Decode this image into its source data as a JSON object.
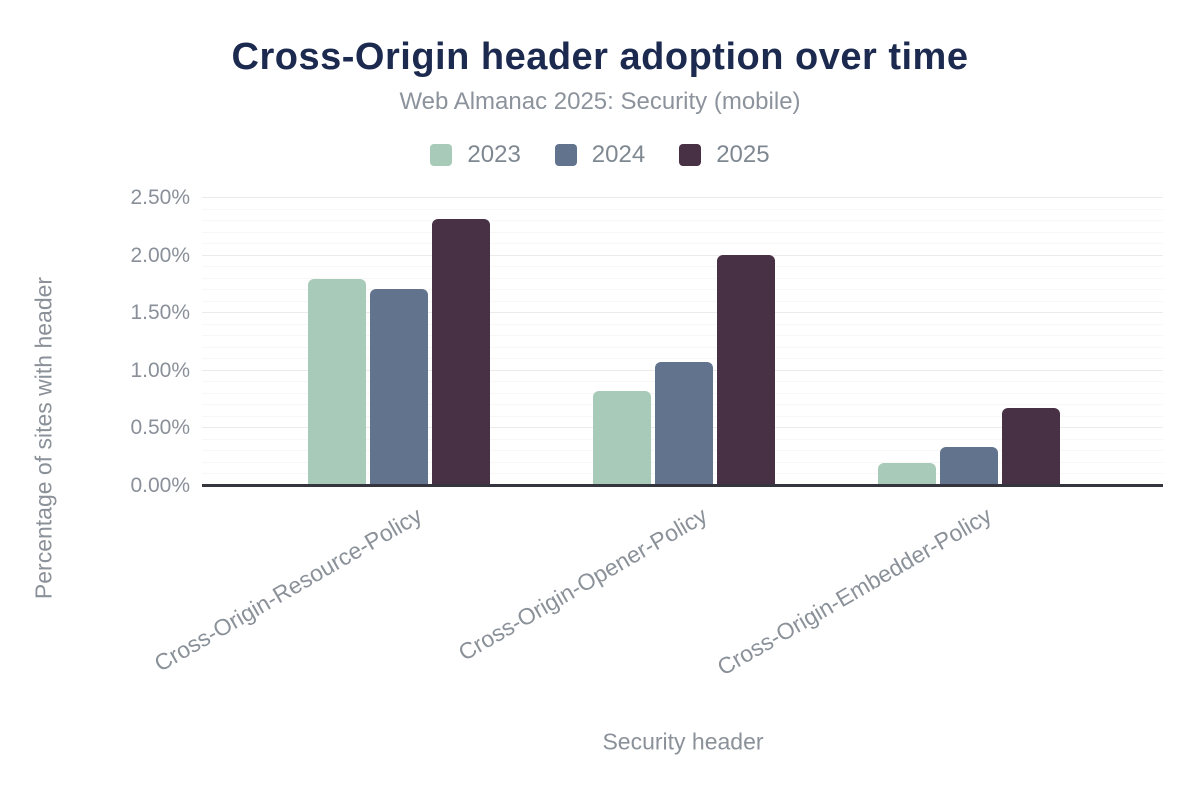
{
  "chart_data": {
    "type": "bar",
    "title": "Cross-Origin header adoption over time",
    "subtitle": "Web Almanac 2025: Security (mobile)",
    "xlabel": "Security header",
    "ylabel": "Percentage of sites with header",
    "categories": [
      "Cross-Origin-Resource-Policy",
      "Cross-Origin-Opener-Policy",
      "Cross-Origin-Embedder-Policy"
    ],
    "series": [
      {
        "name": "2023",
        "color": "#a8cab8",
        "values": [
          1.79,
          0.82,
          0.19
        ]
      },
      {
        "name": "2024",
        "color": "#62738e",
        "values": [
          1.7,
          1.07,
          0.33
        ]
      },
      {
        "name": "2025",
        "color": "#483144",
        "values": [
          2.31,
          2.0,
          0.67
        ]
      }
    ],
    "ylim": [
      0,
      2.5
    ],
    "y_tick_step": 0.5,
    "y_minor_step": 0.1,
    "y_tick_labels": [
      "0.00%",
      "0.50%",
      "1.00%",
      "1.50%",
      "2.00%",
      "2.50%"
    ],
    "grid": true,
    "legend_position": "top"
  },
  "colors": {
    "background": "#ffffff",
    "title": "#1b2a4e",
    "subtitle": "#8d939c",
    "axis_text": "#8a9099",
    "axis_line": "#35353d",
    "grid_major": "#ebebeb",
    "grid_minor": "#f7f7f7"
  }
}
